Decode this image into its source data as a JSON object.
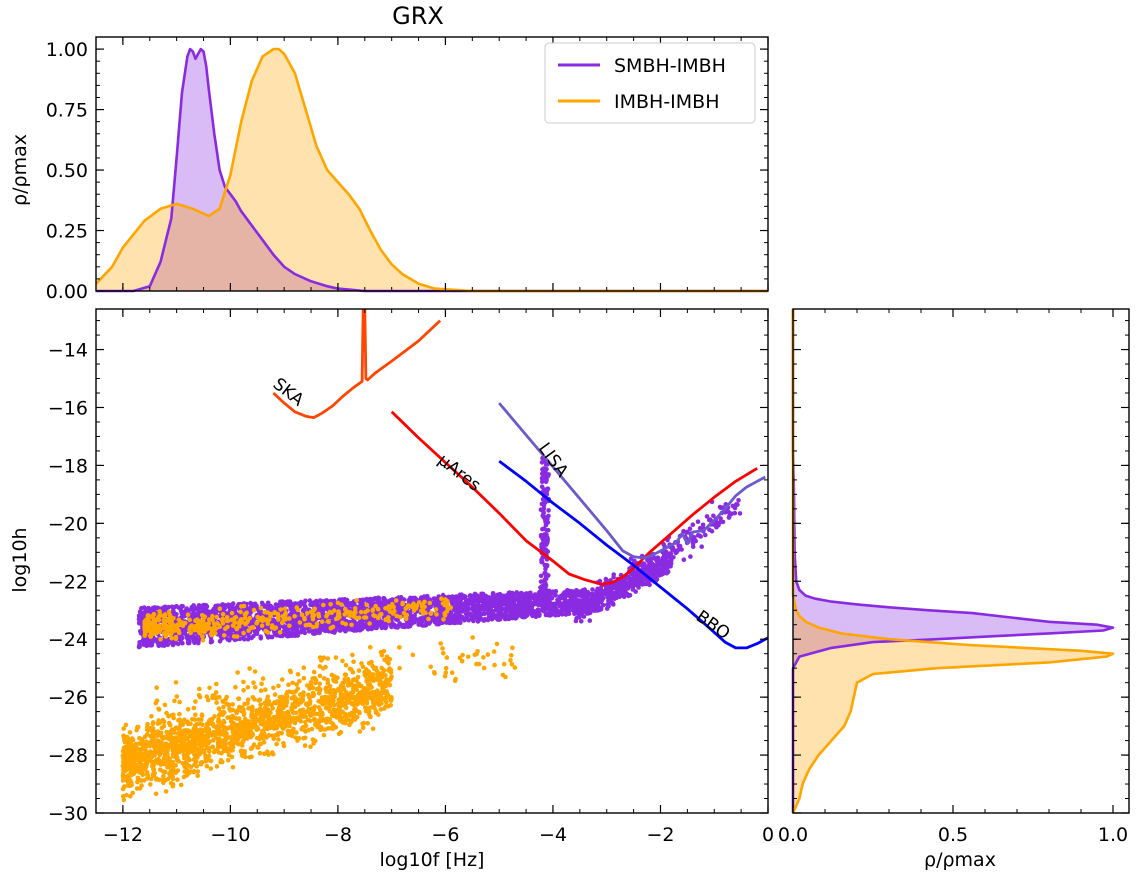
{
  "figure": {
    "title": "GRX"
  },
  "colors": {
    "smbh": "#8a2be2",
    "smbh_fill": "#d5bdf3",
    "imbh": "#ffa500",
    "imbh_fill": "#ffdba0",
    "ska": "#ff4500",
    "mu_ares": "#ff0000",
    "lisa": "#6a5acd",
    "bbo": "#0000ff"
  },
  "chart_data": [
    {
      "id": "top",
      "type": "area",
      "ylabel": "ρ/ρmax",
      "xlim": [
        -12.5,
        0
      ],
      "ylim": [
        0,
        1.05
      ],
      "yticks": [
        "0.00",
        "0.25",
        "0.50",
        "0.75",
        "1.00"
      ],
      "ytick_values": [
        0,
        0.25,
        0.5,
        0.75,
        1.0
      ],
      "legend": {
        "placement": "top-right",
        "entries": [
          "SMBH-IMBH",
          "IMBH-IMBH"
        ]
      },
      "series": [
        {
          "name": "SMBH-IMBH",
          "x": [
            -12.5,
            -11.8,
            -11.5,
            -11.3,
            -11.1,
            -11.0,
            -10.9,
            -10.8,
            -10.75,
            -10.7,
            -10.65,
            -10.6,
            -10.55,
            -10.5,
            -10.45,
            -10.4,
            -10.3,
            -10.2,
            -10.1,
            -10.0,
            -9.9,
            -9.8,
            -9.6,
            -9.4,
            -9.2,
            -9.0,
            -8.8,
            -8.5,
            -8.2,
            -8.0,
            -7.5,
            -6.0,
            0
          ],
          "y": [
            0,
            0,
            0.02,
            0.12,
            0.3,
            0.55,
            0.82,
            0.97,
            1.0,
            0.99,
            0.96,
            0.98,
            1.0,
            0.99,
            0.93,
            0.83,
            0.65,
            0.5,
            0.43,
            0.4,
            0.37,
            0.33,
            0.27,
            0.21,
            0.15,
            0.1,
            0.07,
            0.04,
            0.02,
            0.01,
            0,
            0,
            0
          ]
        },
        {
          "name": "IMBH-IMBH",
          "x": [
            -12.5,
            -12.2,
            -12.0,
            -11.6,
            -11.3,
            -11.0,
            -10.7,
            -10.4,
            -10.2,
            -10.0,
            -9.8,
            -9.6,
            -9.4,
            -9.2,
            -9.1,
            -9.0,
            -8.8,
            -8.6,
            -8.4,
            -8.2,
            -8.0,
            -7.8,
            -7.6,
            -7.4,
            -7.2,
            -7.0,
            -6.8,
            -6.5,
            -6.2,
            -5.5,
            -4.0,
            0
          ],
          "y": [
            0.03,
            0.1,
            0.18,
            0.29,
            0.34,
            0.36,
            0.34,
            0.31,
            0.34,
            0.48,
            0.7,
            0.87,
            0.97,
            1.0,
            1.0,
            0.98,
            0.9,
            0.75,
            0.6,
            0.5,
            0.45,
            0.4,
            0.34,
            0.25,
            0.17,
            0.11,
            0.07,
            0.03,
            0.01,
            0,
            0,
            0
          ]
        }
      ]
    },
    {
      "id": "main",
      "type": "scatter",
      "xlabel": "log10f [Hz]",
      "ylabel": "log10h",
      "xlim": [
        -12.5,
        0
      ],
      "ylim": [
        -30,
        -12.6
      ],
      "xticks": [
        "−12",
        "−10",
        "−8",
        "−6",
        "−4",
        "−2",
        "0"
      ],
      "xtick_values": [
        -12,
        -10,
        -8,
        -6,
        -4,
        -2,
        0
      ],
      "yticks": [
        "−30",
        "−28",
        "−26",
        "−24",
        "−22",
        "−20",
        "−18",
        "−16",
        "−14"
      ],
      "ytick_values": [
        -30,
        -28,
        -26,
        -24,
        -22,
        -20,
        -18,
        -16,
        -14
      ],
      "sensitivity_curves": [
        {
          "name": "SKA",
          "x": [
            -9.2,
            -9.0,
            -8.8,
            -8.6,
            -8.45,
            -8.3,
            -8.1,
            -7.9,
            -7.7,
            -7.55,
            -7.53,
            -7.5,
            -7.48,
            -7.45,
            -7.3,
            -7.0,
            -6.5,
            -6.1
          ],
          "y": [
            -15.5,
            -15.85,
            -16.15,
            -16.3,
            -16.35,
            -16.2,
            -15.95,
            -15.6,
            -15.3,
            -15.1,
            -12.6,
            -12.6,
            -15.0,
            -15.05,
            -14.8,
            -14.4,
            -13.7,
            -13.0
          ]
        },
        {
          "name": "μAres",
          "x": [
            -7.0,
            -6.5,
            -6.0,
            -5.5,
            -5.0,
            -4.5,
            -4.0,
            -3.7,
            -3.4,
            -3.1,
            -2.9,
            -2.7,
            -2.5,
            -2.2,
            -1.8,
            -1.4,
            -1.0,
            -0.6,
            -0.2
          ],
          "y": [
            -16.15,
            -17.05,
            -17.9,
            -18.75,
            -19.65,
            -20.6,
            -21.3,
            -21.75,
            -21.95,
            -22.1,
            -22.05,
            -21.85,
            -21.55,
            -21.0,
            -20.35,
            -19.7,
            -19.1,
            -18.55,
            -18.1
          ]
        },
        {
          "name": "LISA",
          "x": [
            -5.0,
            -4.5,
            -4.0,
            -3.5,
            -3.0,
            -2.7,
            -2.5,
            -2.3,
            -2.1,
            -1.9,
            -1.7,
            -1.6,
            -1.5,
            -1.4,
            -1.2,
            -1.0,
            -0.8,
            -0.6,
            -0.4,
            -0.2,
            -0.05
          ],
          "y": [
            -15.85,
            -16.95,
            -18.05,
            -19.15,
            -20.25,
            -20.95,
            -21.15,
            -21.2,
            -21.05,
            -20.85,
            -20.65,
            -20.35,
            -20.7,
            -20.3,
            -20.25,
            -19.9,
            -19.5,
            -19.05,
            -18.75,
            -18.55,
            -18.4
          ]
        },
        {
          "name": "BBO",
          "x": [
            -5.0,
            -4.5,
            -4.0,
            -3.5,
            -3.0,
            -2.5,
            -2.0,
            -1.5,
            -1.1,
            -0.8,
            -0.6,
            -0.4,
            -0.2,
            0.0
          ],
          "y": [
            -17.85,
            -18.55,
            -19.3,
            -20.0,
            -20.75,
            -21.45,
            -22.2,
            -22.95,
            -23.6,
            -24.1,
            -24.3,
            -24.3,
            -24.15,
            -23.95
          ]
        }
      ],
      "populations": [
        {
          "name": "SMBH-IMBH",
          "x_range": [
            -11.7,
            -1.2
          ],
          "y_range": [
            -24.5,
            -17.8
          ]
        },
        {
          "name": "IMBH-IMBH",
          "x_range": [
            -12.0,
            -4.7
          ],
          "y_range": [
            -30,
            -22.1
          ]
        }
      ]
    },
    {
      "id": "right",
      "type": "area",
      "xlabel": "ρ/ρmax",
      "xlim": [
        0,
        1.05
      ],
      "ylim": [
        -30,
        -12.6
      ],
      "xticks": [
        "0.0",
        "0.5",
        "1.0"
      ],
      "xtick_values": [
        0,
        0.5,
        1.0
      ],
      "series": [
        {
          "name": "SMBH-IMBH",
          "y": [
            -30,
            -25.0,
            -24.6,
            -24.3,
            -24.1,
            -24.0,
            -23.9,
            -23.8,
            -23.7,
            -23.6,
            -23.5,
            -23.4,
            -23.3,
            -23.2,
            -23.1,
            -23.0,
            -22.9,
            -22.8,
            -22.7,
            -22.6,
            -22.5,
            -22.3,
            -22.0,
            -21.0,
            -19.0,
            -17.5,
            -12.6
          ],
          "x": [
            0,
            0,
            0.02,
            0.12,
            0.25,
            0.45,
            0.62,
            0.8,
            0.97,
            1.0,
            0.95,
            0.8,
            0.72,
            0.64,
            0.56,
            0.42,
            0.3,
            0.2,
            0.12,
            0.07,
            0.04,
            0.02,
            0.01,
            0.005,
            0.003,
            0,
            0
          ]
        },
        {
          "name": "IMBH-IMBH",
          "y": [
            -30,
            -29.5,
            -29.0,
            -28.5,
            -28.0,
            -27.5,
            -27.0,
            -26.5,
            -26.0,
            -25.5,
            -25.2,
            -25.0,
            -24.8,
            -24.6,
            -24.5,
            -24.4,
            -24.2,
            -24.0,
            -23.8,
            -23.6,
            -23.4,
            -23.2,
            -23.0,
            -22.5,
            -12.6
          ],
          "x": [
            0,
            0.02,
            0.03,
            0.05,
            0.08,
            0.12,
            0.16,
            0.18,
            0.19,
            0.2,
            0.25,
            0.45,
            0.8,
            0.98,
            1.0,
            0.9,
            0.55,
            0.3,
            0.15,
            0.08,
            0.04,
            0.02,
            0.01,
            0,
            0
          ]
        }
      ]
    }
  ]
}
